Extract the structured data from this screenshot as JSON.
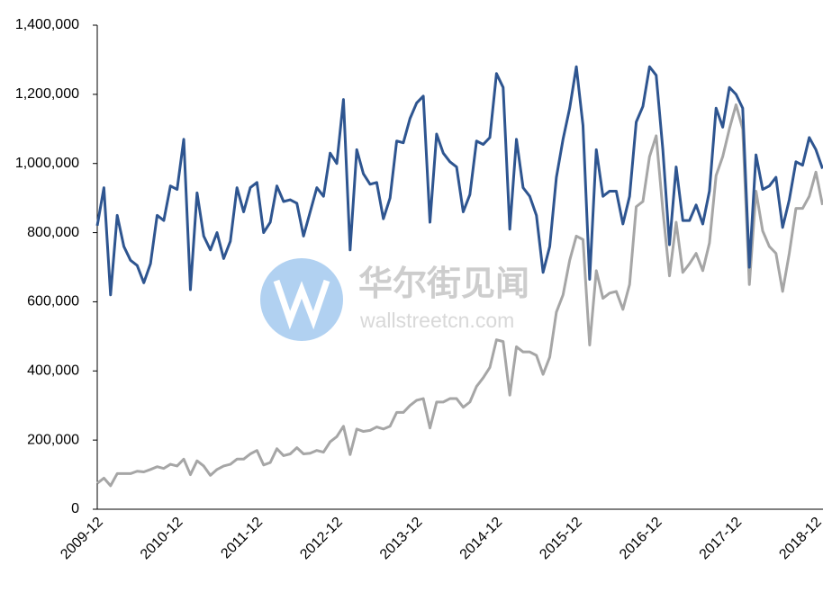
{
  "chart_data": {
    "type": "line",
    "categories": [
      "2009-12",
      null,
      null,
      null,
      null,
      null,
      null,
      null,
      null,
      null,
      null,
      null,
      "2010-12",
      null,
      null,
      null,
      null,
      null,
      null,
      null,
      null,
      null,
      null,
      null,
      "2011-12",
      null,
      null,
      null,
      null,
      null,
      null,
      null,
      null,
      null,
      null,
      null,
      "2012-12",
      null,
      null,
      null,
      null,
      null,
      null,
      null,
      null,
      null,
      null,
      null,
      "2013-12",
      null,
      null,
      null,
      null,
      null,
      null,
      null,
      null,
      null,
      null,
      null,
      "2014-12",
      null,
      null,
      null,
      null,
      null,
      null,
      null,
      null,
      null,
      null,
      null,
      "2015-12",
      null,
      null,
      null,
      null,
      null,
      null,
      null,
      null,
      null,
      null,
      null,
      "2016-12",
      null,
      null,
      null,
      null,
      null,
      null,
      null,
      null,
      null,
      null,
      null,
      "2017-12",
      null,
      null,
      null,
      null,
      null,
      null,
      null,
      null,
      null,
      null,
      null,
      "2018-12",
      null
    ],
    "series": [
      {
        "color": "#2e5590",
        "values": [
          820000,
          930000,
          620000,
          850000,
          760000,
          720000,
          705000,
          655000,
          710000,
          850000,
          835000,
          935000,
          925000,
          1070000,
          635000,
          915000,
          790000,
          750000,
          800000,
          725000,
          775000,
          930000,
          860000,
          930000,
          945000,
          800000,
          830000,
          935000,
          890000,
          895000,
          885000,
          790000,
          860000,
          930000,
          905000,
          1030000,
          1000000,
          1185000,
          750000,
          1040000,
          970000,
          940000,
          945000,
          840000,
          900000,
          1065000,
          1060000,
          1130000,
          1175000,
          1195000,
          830000,
          1085000,
          1030000,
          1005000,
          990000,
          860000,
          910000,
          1065000,
          1055000,
          1075000,
          1260000,
          1220000,
          810000,
          1070000,
          930000,
          905000,
          850000,
          685000,
          760000,
          960000,
          1070000,
          1160000,
          1280000,
          1110000,
          665000,
          1040000,
          905000,
          920000,
          920000,
          825000,
          905000,
          1120000,
          1165000,
          1280000,
          1255000,
          1040000,
          765000,
          990000,
          835000,
          835000,
          880000,
          825000,
          920000,
          1160000,
          1105000,
          1220000,
          1200000,
          1160000,
          700000,
          1025000,
          925000,
          935000,
          960000,
          815000,
          895000,
          1005000,
          995000,
          1075000,
          1040000,
          985000
        ]
      },
      {
        "color": "#a6a6a6",
        "values": [
          75000,
          90000,
          68000,
          103000,
          103000,
          103000,
          110000,
          108000,
          115000,
          123000,
          118000,
          130000,
          125000,
          145000,
          100000,
          140000,
          125000,
          98000,
          115000,
          125000,
          130000,
          145000,
          145000,
          160000,
          170000,
          128000,
          135000,
          175000,
          155000,
          160000,
          178000,
          160000,
          162000,
          170000,
          165000,
          195000,
          210000,
          240000,
          158000,
          232000,
          225000,
          228000,
          238000,
          232000,
          240000,
          280000,
          280000,
          300000,
          315000,
          320000,
          235000,
          310000,
          310000,
          320000,
          320000,
          295000,
          310000,
          355000,
          380000,
          410000,
          490000,
          485000,
          330000,
          470000,
          455000,
          455000,
          445000,
          390000,
          440000,
          570000,
          620000,
          720000,
          790000,
          780000,
          475000,
          690000,
          610000,
          625000,
          630000,
          578000,
          650000,
          875000,
          890000,
          1020000,
          1080000,
          865000,
          675000,
          830000,
          685000,
          710000,
          740000,
          690000,
          770000,
          965000,
          1020000,
          1100000,
          1170000,
          1100000,
          650000,
          920000,
          805000,
          760000,
          740000,
          630000,
          740000,
          870000,
          870000,
          905000,
          975000,
          880000
        ]
      }
    ],
    "ylim": [
      0,
      1400000
    ],
    "yticks": [
      0,
      {
        "value": 200000,
        "label": "200,000"
      },
      {
        "value": 400000,
        "label": "400,000"
      },
      {
        "value": 600000,
        "label": "600,000"
      },
      {
        "value": 800000,
        "label": "800,000"
      },
      {
        "value": 1000000,
        "label": "1,000,000"
      },
      {
        "value": 1200000,
        "label": "1,200,000"
      },
      {
        "value": 1400000,
        "label": "1,400,000"
      }
    ],
    "watermark": {
      "name": "华尔街见闻",
      "url": "wallstreetcn.com"
    }
  }
}
